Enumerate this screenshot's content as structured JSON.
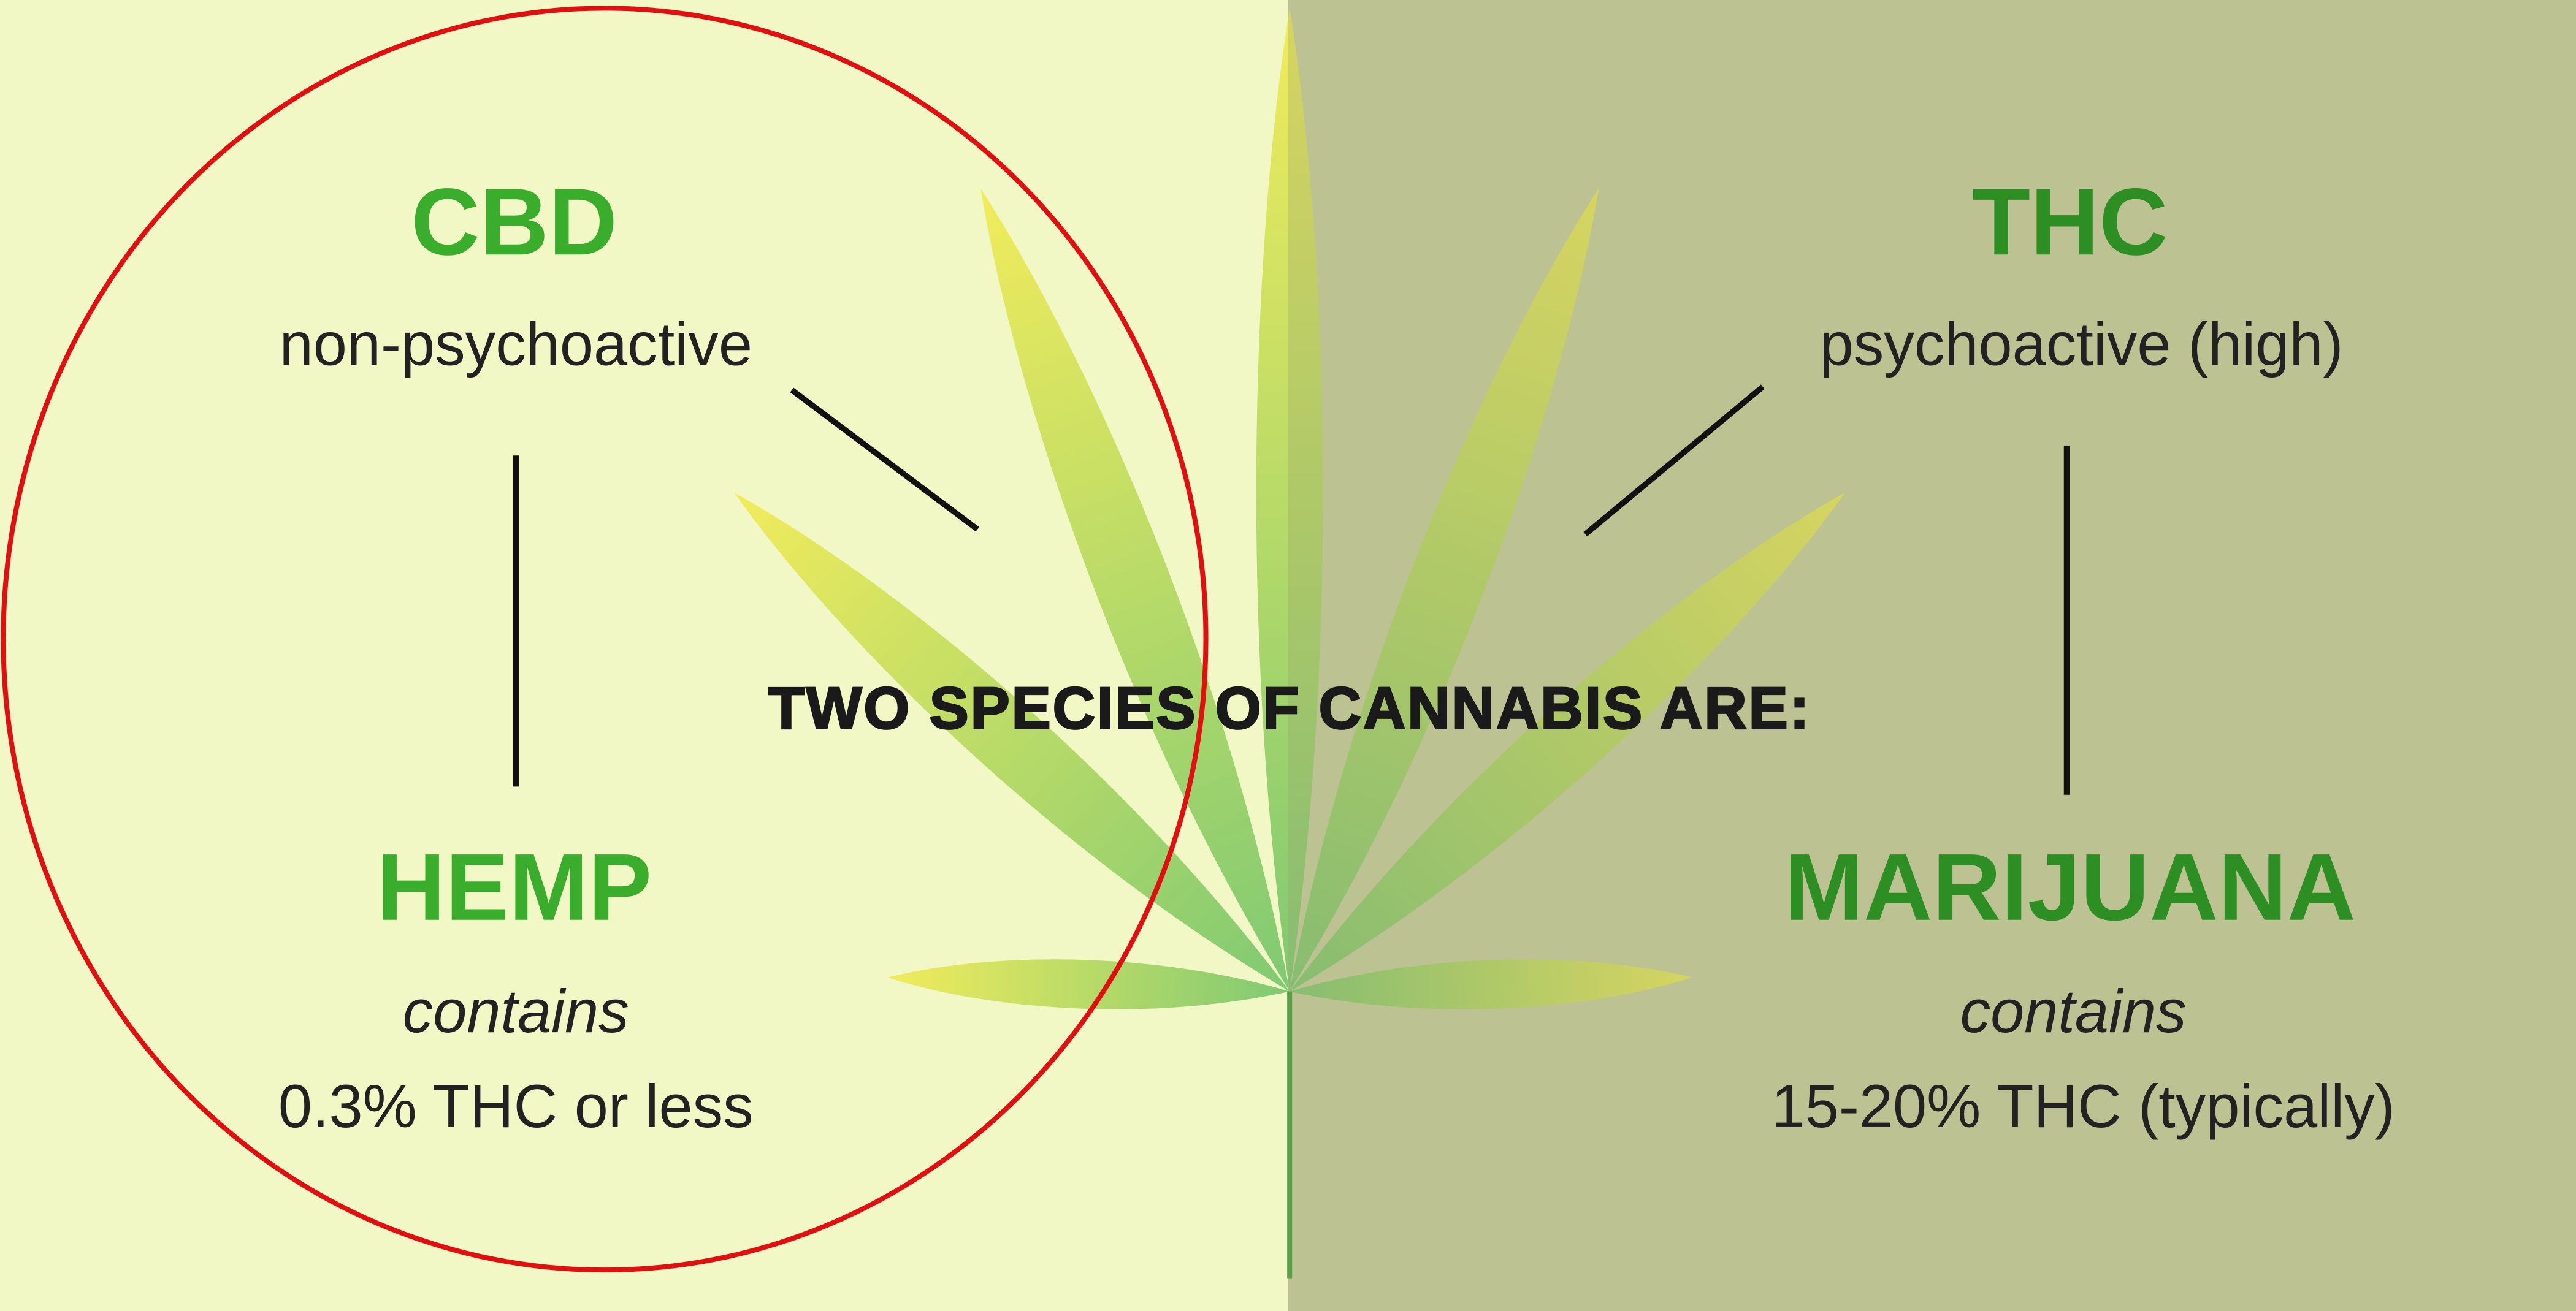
{
  "title": "TWO SPECIES OF CANNABIS ARE:",
  "left": {
    "compound": "CBD",
    "effect": "non-psychoactive",
    "species": "HEMP",
    "contains": "contains",
    "amount": "0.3% THC or less"
  },
  "right": {
    "compound": "THC",
    "effect": "psychoactive (high)",
    "species": "MARIJUANA",
    "contains": "contains",
    "amount": "15-20% THC (typically)"
  }
}
